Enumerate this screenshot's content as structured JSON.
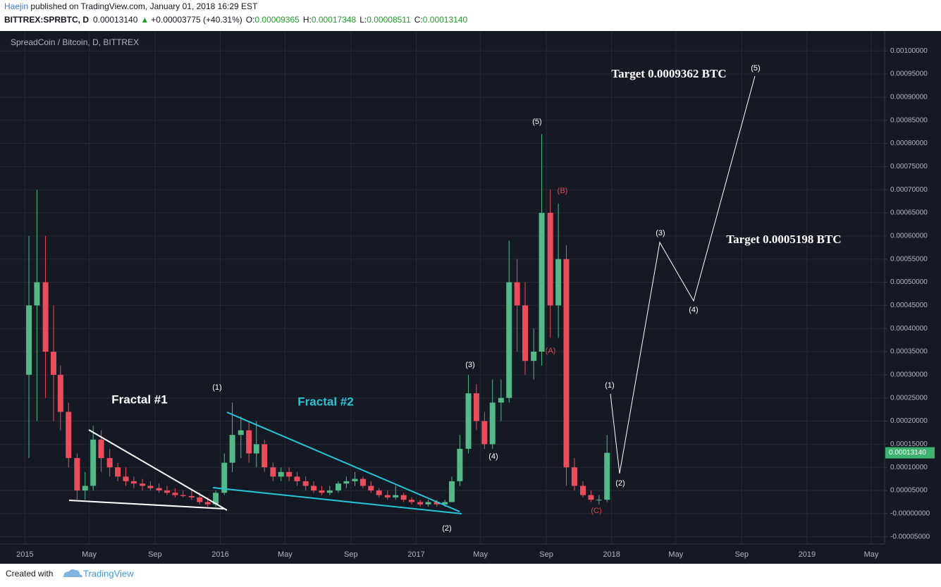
{
  "header": {
    "author": "Haejin",
    "published": " published on TradingView.com, January 01, 2018 16:29 EST",
    "symbol": "BITTREX:SPRBTC, D",
    "last": "0.00013140",
    "arrow": "▲",
    "change": "+0.00003775 (+40.31%)",
    "o_label": "O:",
    "o": "0.00009365",
    "h_label": "H:",
    "h": "0.00017348",
    "l_label": "L:",
    "l": "0.00008511",
    "c_label": "C:",
    "c": "0.00013140"
  },
  "chart_data": {
    "type": "candlestick",
    "title": "SpreadCoin / Bitcoin, D, BITTREX",
    "price_tag": "0.00013140",
    "up_color": "#53b987",
    "down_color": "#eb4d5c",
    "grid": true,
    "xlim": [
      "2014-11-26",
      "2019-05-26"
    ],
    "xticks": [
      {
        "value": "2015-01-01",
        "label": "2015"
      },
      {
        "value": "2015-05-01",
        "label": "May"
      },
      {
        "value": "2015-09-01",
        "label": "Sep"
      },
      {
        "value": "2016-01-01",
        "label": "2016"
      },
      {
        "value": "2016-05-01",
        "label": "May"
      },
      {
        "value": "2016-09-01",
        "label": "Sep"
      },
      {
        "value": "2017-01-01",
        "label": "2017"
      },
      {
        "value": "2017-05-01",
        "label": "May"
      },
      {
        "value": "2017-09-01",
        "label": "Sep"
      },
      {
        "value": "2018-01-01",
        "label": "2018"
      },
      {
        "value": "2018-05-01",
        "label": "May"
      },
      {
        "value": "2018-09-01",
        "label": "Sep"
      },
      {
        "value": "2019-01-01",
        "label": "2019"
      },
      {
        "value": "2019-05-01",
        "label": "May"
      }
    ],
    "ylim": [
      -6.57e-05,
      0.001043
    ],
    "yticks": [
      {
        "value": -5e-05,
        "label": "-0.00005000"
      },
      {
        "value": 0,
        "label": "-0.00000000"
      },
      {
        "value": 5e-05,
        "label": "0.00005000"
      },
      {
        "value": 0.0001,
        "label": "0.00010000"
      },
      {
        "value": 0.00015,
        "label": "0.00015000"
      },
      {
        "value": 0.0002,
        "label": "0.00020000"
      },
      {
        "value": 0.00025,
        "label": "0.00025000"
      },
      {
        "value": 0.0003,
        "label": "0.00030000"
      },
      {
        "value": 0.00035,
        "label": "0.00035000"
      },
      {
        "value": 0.0004,
        "label": "0.00040000"
      },
      {
        "value": 0.00045,
        "label": "0.00045000"
      },
      {
        "value": 0.0005,
        "label": "0.00050000"
      },
      {
        "value": 0.00055,
        "label": "0.00055000"
      },
      {
        "value": 0.0006,
        "label": "0.00060000"
      },
      {
        "value": 0.00065,
        "label": "0.00065000"
      },
      {
        "value": 0.0007,
        "label": "0.00070000"
      },
      {
        "value": 0.00075,
        "label": "0.00075000"
      },
      {
        "value": 0.0008,
        "label": "0.00080000"
      },
      {
        "value": 0.00085,
        "label": "0.00085000"
      },
      {
        "value": 0.0009,
        "label": "0.00090000"
      },
      {
        "value": 0.00095,
        "label": "0.00095000"
      },
      {
        "value": 0.001,
        "label": "0.00100000"
      }
    ],
    "x": [
      "2015-01-01",
      "2015-01-16",
      "2015-02-01",
      "2015-02-16",
      "2015-03-01",
      "2015-03-16",
      "2015-04-01",
      "2015-04-16",
      "2015-05-01",
      "2015-05-16",
      "2015-06-01",
      "2015-06-16",
      "2015-07-01",
      "2015-07-16",
      "2015-08-01",
      "2015-08-16",
      "2015-09-01",
      "2015-09-16",
      "2015-10-01",
      "2015-10-16",
      "2015-11-01",
      "2015-11-16",
      "2015-12-01",
      "2015-12-16",
      "2016-01-01",
      "2016-01-16",
      "2016-02-01",
      "2016-02-16",
      "2016-03-01",
      "2016-03-16",
      "2016-04-01",
      "2016-04-16",
      "2016-05-01",
      "2016-05-16",
      "2016-06-01",
      "2016-06-16",
      "2016-07-01",
      "2016-07-16",
      "2016-08-01",
      "2016-08-16",
      "2016-09-01",
      "2016-09-16",
      "2016-10-01",
      "2016-10-16",
      "2016-11-01",
      "2016-11-16",
      "2016-12-01",
      "2016-12-16",
      "2017-01-01",
      "2017-01-16",
      "2017-02-01",
      "2017-02-16",
      "2017-03-01",
      "2017-03-16",
      "2017-04-01",
      "2017-04-16",
      "2017-05-01",
      "2017-05-16",
      "2017-06-01",
      "2017-06-16",
      "2017-07-01",
      "2017-07-16",
      "2017-08-01",
      "2017-08-16",
      "2017-09-01",
      "2017-09-16",
      "2017-10-01",
      "2017-10-16",
      "2017-11-01",
      "2017-11-16",
      "2017-12-01",
      "2017-12-16"
    ],
    "open": [
      0.0003,
      0.00045,
      0.0005,
      0.00035,
      0.0003,
      0.00022,
      0.00012,
      5e-05,
      6e-05,
      0.00016,
      0.00012,
      0.0001,
      8e-05,
      7e-05,
      6.5e-05,
      6e-05,
      5.5e-05,
      5e-05,
      4.5e-05,
      4e-05,
      3.8e-05,
      3.5e-05,
      2.5e-05,
      2e-05,
      4.5e-05,
      0.00011,
      0.00017,
      0.00018,
      0.00013,
      0.00015,
      0.0001,
      8e-05,
      9e-05,
      8e-05,
      7e-05,
      6e-05,
      5e-05,
      4.5e-05,
      5e-05,
      6.5e-05,
      7e-05,
      7.5e-05,
      6e-05,
      5e-05,
      4e-05,
      3.5e-05,
      4e-05,
      3e-05,
      2.5e-05,
      2e-05,
      2.5e-05,
      2e-05,
      2.5e-05,
      7e-05,
      0.00014,
      0.00026,
      0.0002,
      0.00015,
      0.00024,
      0.00025,
      0.0005,
      0.00045,
      0.00033,
      0.00035,
      0.00065,
      0.00045,
      0.00055,
      0.0001,
      6e-05,
      4e-05,
      3e-05,
      3e-05
    ],
    "high": [
      0.0006,
      0.0007,
      0.0006,
      0.00045,
      0.00032,
      0.00024,
      0.00013,
      9e-05,
      0.00019,
      0.00018,
      0.00014,
      0.00011,
      0.0001,
      8e-05,
      7.5e-05,
      7e-05,
      6.5e-05,
      6e-05,
      5.5e-05,
      5e-05,
      5e-05,
      4.5e-05,
      3.5e-05,
      5e-05,
      0.00013,
      0.00024,
      0.00021,
      0.0002,
      0.0002,
      0.00016,
      0.00011,
      0.0001,
      0.0001,
      9e-05,
      8e-05,
      7e-05,
      6e-05,
      6e-05,
      7e-05,
      8e-05,
      9e-05,
      8e-05,
      7e-05,
      5.5e-05,
      5e-05,
      6e-05,
      4.5e-05,
      3.5e-05,
      3e-05,
      3e-05,
      3e-05,
      3e-05,
      8e-05,
      0.00017,
      0.0003,
      0.00028,
      0.00022,
      0.00029,
      0.00029,
      0.00059,
      0.00055,
      0.0005,
      0.0004,
      0.00082,
      0.0007,
      0.00067,
      0.00058,
      0.00012,
      7e-05,
      5e-05,
      4e-05,
      0.00017
    ],
    "low": [
      0.00012,
      0.0002,
      0.00025,
      0.0002,
      0.00018,
      0.0001,
      3e-05,
      3e-05,
      5e-05,
      9e-05,
      8e-05,
      7e-05,
      6e-05,
      5.5e-05,
      5e-05,
      5e-05,
      4.5e-05,
      4e-05,
      3.5e-05,
      3.5e-05,
      3e-05,
      2e-05,
      1.5e-05,
      1.5e-05,
      4e-05,
      9e-05,
      0.00012,
      0.00011,
      0.0001,
      9e-05,
      7e-05,
      7e-05,
      7e-05,
      6e-05,
      5e-05,
      4.5e-05,
      4e-05,
      4e-05,
      4.5e-05,
      5.5e-05,
      6e-05,
      5.5e-05,
      4.5e-05,
      3.5e-05,
      3e-05,
      3e-05,
      2.5e-05,
      2e-05,
      1.5e-05,
      1.5e-05,
      1.5e-05,
      1.5e-05,
      2.5e-05,
      6e-05,
      0.00013,
      0.00018,
      0.00014,
      0.00014,
      0.0002,
      0.00024,
      0.00035,
      0.0003,
      0.00029,
      0.00032,
      0.00038,
      0.00038,
      6e-05,
      5e-05,
      3.5e-05,
      2.5e-05,
      2e-05,
      2.5e-05
    ],
    "close": [
      0.00045,
      0.0005,
      0.00035,
      0.0003,
      0.00022,
      0.00012,
      5e-05,
      6e-05,
      0.00016,
      0.00012,
      0.0001,
      8e-05,
      7e-05,
      6.5e-05,
      6e-05,
      5.5e-05,
      5e-05,
      4.5e-05,
      4e-05,
      3.8e-05,
      3.5e-05,
      2.5e-05,
      2e-05,
      4.5e-05,
      0.00011,
      0.00017,
      0.00018,
      0.00013,
      0.00015,
      0.0001,
      8e-05,
      9e-05,
      8e-05,
      7e-05,
      6e-05,
      5e-05,
      4.5e-05,
      5e-05,
      6.5e-05,
      7e-05,
      7.5e-05,
      6e-05,
      5e-05,
      4e-05,
      3.5e-05,
      4e-05,
      3e-05,
      2.5e-05,
      2e-05,
      2.5e-05,
      2e-05,
      2.5e-05,
      7e-05,
      0.00014,
      0.00026,
      0.0002,
      0.00015,
      0.00024,
      0.00025,
      0.0005,
      0.00045,
      0.00033,
      0.00035,
      0.00065,
      0.00045,
      0.00055,
      0.0001,
      6e-05,
      4e-05,
      3e-05,
      3e-05,
      0.0001314
    ]
  },
  "annotations": [
    "Fractal #1",
    "Fractal #2",
    "(1)",
    "(2)",
    "(3)",
    "(4)",
    "(5)",
    "(B)",
    "(A)",
    "(C)",
    "(1)",
    "(2)",
    "(3)",
    "(4)",
    "(5)",
    "Target 0.0009362 BTC",
    "Target 0.0005198 BTC"
  ],
  "footer": {
    "created": "Created with",
    "brand": "TradingView"
  }
}
